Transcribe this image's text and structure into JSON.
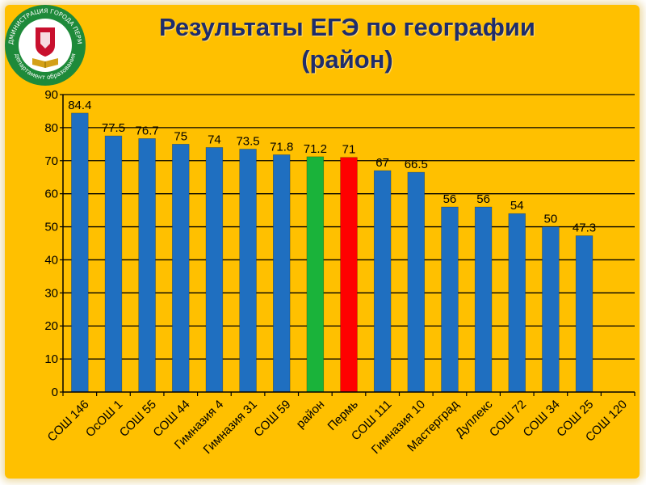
{
  "title": {
    "line1": "Результаты ЕГЭ по географии",
    "line2": "(район)"
  },
  "logo": {
    "top_text": "АДМИНИСТРАЦИЯ ГОРОДА ПЕРМИ",
    "bottom_text": "департамент образования",
    "colors": {
      "ring": "#1e8a3a",
      "inner": "#ffffff",
      "shield": "#c8102e",
      "book": "#d4a017"
    }
  },
  "colors": {
    "background": "#ffc000",
    "bar_default": "#1f6fc0",
    "bar_district": "#1ab33a",
    "bar_city": "#ff0000",
    "title": "#1f2d6b"
  },
  "chart_data": {
    "type": "bar",
    "categories": [
      "СОШ 146",
      "ОсОШ 1",
      "СОШ 55",
      "СОШ 44",
      "Гимназия 4",
      "Гимназия 31",
      "СОШ 59",
      "район",
      "Пермь",
      "СОШ 111",
      "Гимназия 10",
      "Мастерград",
      "Дуплекс",
      "СОШ 72",
      "СОШ 34",
      "СОШ 25",
      "СОШ 120"
    ],
    "values": [
      84.4,
      77.5,
      76.7,
      75,
      74,
      73.5,
      71.8,
      71.2,
      71,
      67,
      66.5,
      56,
      56,
      54,
      50,
      47.3,
      null
    ],
    "value_labels": [
      "84.4",
      "77.5",
      "76.7",
      "75",
      "74",
      "73.5",
      "71.8",
      "71.2",
      "71",
      "67",
      "66.5",
      "56",
      "56",
      "54",
      "50",
      "47.3",
      ""
    ],
    "highlight": {
      "район": "#1ab33a",
      "Пермь": "#ff0000"
    },
    "ylim": [
      0,
      90
    ],
    "yticks": [
      0,
      10,
      20,
      30,
      40,
      50,
      60,
      70,
      80,
      90
    ],
    "grid": true,
    "legend": "none"
  }
}
